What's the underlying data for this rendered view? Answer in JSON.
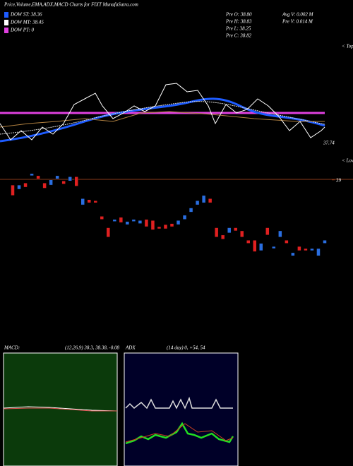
{
  "header": {
    "title": "Price,Volume,EMA,ADX,MACD Charts for FIXT MunafaSutra.com"
  },
  "legend": [
    {
      "label": "DOW ST: 38.36",
      "color": "#1e5cff"
    },
    {
      "label": "DOW MT: 38.45",
      "color": "#ffffff"
    },
    {
      "label": "DOW PT: 0",
      "color": "#e040e0"
    }
  ],
  "stats": [
    "Pre  O: 38.80",
    "Pre  H: 38.83",
    "Pre  L: 38.25",
    "Pre  C: 38.82",
    "Avg V: 0.002  M",
    "Pre  V: 0.014  M"
  ],
  "labels": {
    "last": "37.74",
    "level": "39",
    "tops": "< Tops",
    "lows": "< Lows"
  },
  "macd": {
    "title": "MACD:",
    "params": "(12,26,9) 38.3, 38.38, -0.08"
  },
  "adx": {
    "title": "ADX",
    "params": "(14  day) 0, +54, 54"
  },
  "chart_data": {
    "type": "candlestick",
    "ylim": [
      38.15,
      39.1
    ],
    "yticks": [
      39
    ],
    "up_color": "#2a6ee0",
    "down_color": "#e02020",
    "open": [
      38.95,
      38.91,
      38.97,
      39.04,
      39.04,
      38.97,
      38.95,
      39.01,
      38.99,
      38.99,
      39.03,
      38.76,
      38.81,
      38.8,
      38.65,
      38.54,
      38.6,
      38.64,
      38.57,
      38.6,
      38.58,
      38.62,
      38.61,
      38.55,
      38.57,
      38.58,
      38.57,
      38.62,
      38.69,
      38.76,
      38.78,
      38.82,
      38.54,
      38.47,
      38.49,
      38.54,
      38.51,
      38.42,
      38.42,
      38.32,
      38.54,
      38.34,
      38.45,
      38.42,
      38.27,
      38.36,
      38.34,
      38.32,
      38.27,
      38.39
    ],
    "close": [
      38.85,
      38.95,
      38.93,
      39.06,
      39.01,
      38.92,
      39.0,
      39.04,
      38.96,
      39.03,
      38.94,
      38.82,
      38.78,
      38.78,
      38.62,
      38.45,
      38.62,
      38.59,
      38.6,
      38.62,
      38.61,
      38.55,
      38.52,
      38.53,
      38.53,
      38.55,
      38.61,
      38.66,
      38.73,
      38.8,
      38.85,
      38.78,
      38.45,
      38.43,
      38.54,
      38.51,
      38.45,
      38.39,
      38.31,
      38.39,
      38.47,
      38.36,
      38.51,
      38.39,
      38.3,
      38.32,
      38.32,
      38.34,
      38.34,
      38.42
    ]
  }
}
